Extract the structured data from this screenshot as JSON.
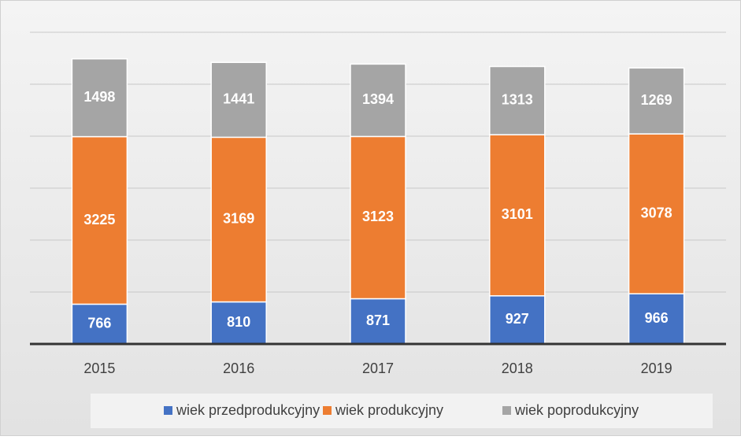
{
  "chart_data": {
    "type": "stacked_bar",
    "categories": [
      "2015",
      "2016",
      "2017",
      "2018",
      "2019"
    ],
    "series": [
      {
        "name": "wiek przedprodukcyjny",
        "color": "#4472c4",
        "values": [
          766,
          810,
          871,
          927,
          966
        ]
      },
      {
        "name": "wiek produkcyjny",
        "color": "#ed7d31",
        "values": [
          3225,
          3169,
          3123,
          3101,
          3078
        ]
      },
      {
        "name": "wiek poprodukcyjny",
        "color": "#a5a5a5",
        "values": [
          1498,
          1441,
          1394,
          1313,
          1269
        ]
      }
    ],
    "ylim": [
      0,
      6000
    ],
    "yticks": [
      0,
      1000,
      2000,
      3000,
      4000,
      5000,
      6000
    ],
    "grid": true,
    "legend": "bottom"
  }
}
